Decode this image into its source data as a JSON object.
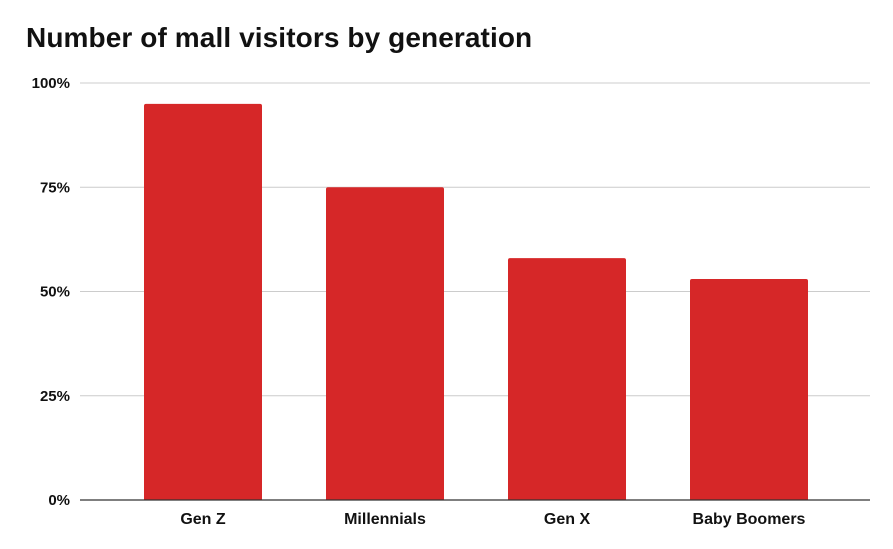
{
  "chart_data": {
    "type": "bar",
    "title": "Number of mall visitors by generation",
    "xlabel": "",
    "ylabel": "",
    "categories": [
      "Gen Z",
      "Millennials",
      "Gen X",
      "Baby Boomers"
    ],
    "values": [
      95,
      75,
      58,
      53
    ],
    "ylim": [
      0,
      100
    ],
    "yticks": [
      0,
      25,
      50,
      75,
      100
    ],
    "ytick_labels": [
      "0%",
      "25%",
      "50%",
      "75%",
      "100%"
    ],
    "grid": true,
    "legend": "none",
    "bar_color": "#d62728"
  }
}
